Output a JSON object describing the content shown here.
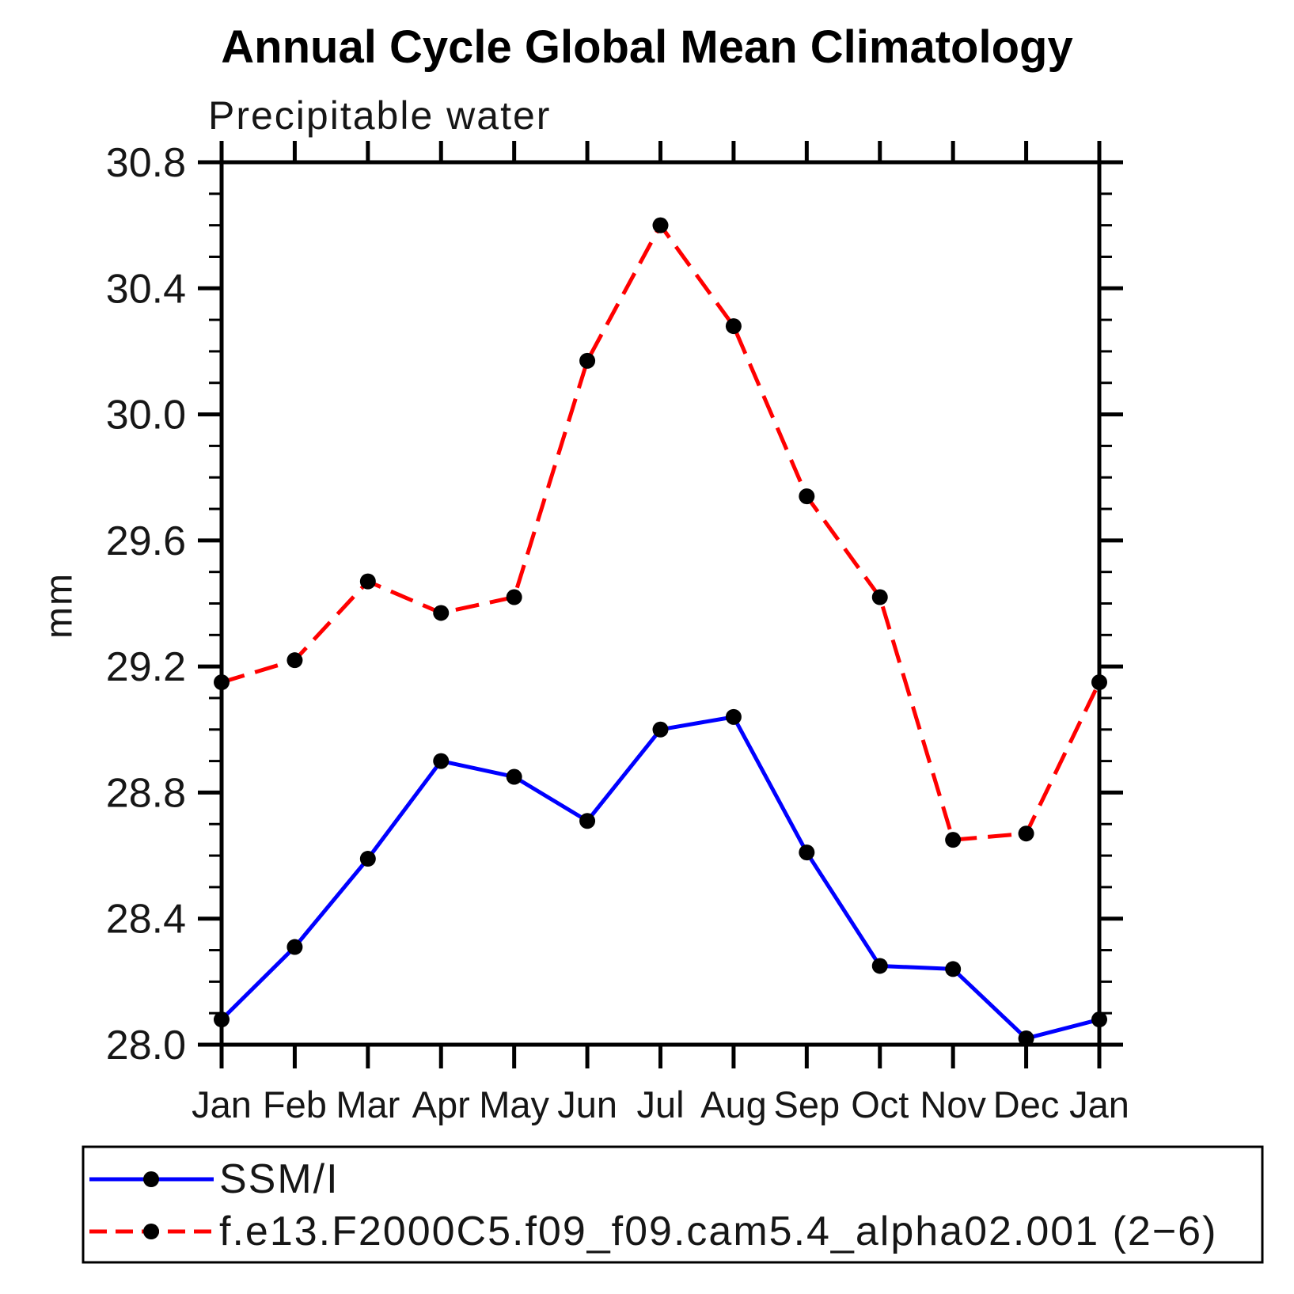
{
  "chart_data": {
    "type": "line",
    "title": "Annual Cycle Global Mean Climatology",
    "subtitle": "Precipitable water",
    "ylabel": "mm",
    "x_categories": [
      "Jan",
      "Feb",
      "Mar",
      "Apr",
      "May",
      "Jun",
      "Jul",
      "Aug",
      "Sep",
      "Oct",
      "Nov",
      "Dec",
      "Jan"
    ],
    "ylim": [
      28.0,
      30.8
    ],
    "ytick_interval_major": 0.4,
    "ytick_interval_minor": 0.1,
    "ytick_labels": [
      "28.0",
      "28.4",
      "28.8",
      "29.2",
      "29.6",
      "30.0",
      "30.4",
      "30.8"
    ],
    "grid": false,
    "legend_position": "bottom",
    "axis_color": "#000000",
    "marker_color": "#000000",
    "background_color": "#ffffff",
    "series": [
      {
        "name": "SSM/I",
        "color": "#0000ff",
        "line_style": "solid",
        "marker": "filled-circle",
        "values": [
          28.08,
          28.31,
          28.59,
          28.9,
          28.85,
          28.71,
          29.0,
          29.04,
          28.61,
          28.25,
          28.24,
          28.02,
          28.08
        ]
      },
      {
        "name": "f.e13.F2000C5.f09_f09.cam5.4_alpha02.001 (2−6)",
        "color": "#ff0000",
        "line_style": "dashed",
        "marker": "filled-circle",
        "values": [
          29.15,
          29.22,
          29.47,
          29.37,
          29.42,
          30.17,
          30.6,
          30.28,
          29.74,
          29.42,
          28.65,
          28.67,
          29.15
        ]
      }
    ]
  }
}
